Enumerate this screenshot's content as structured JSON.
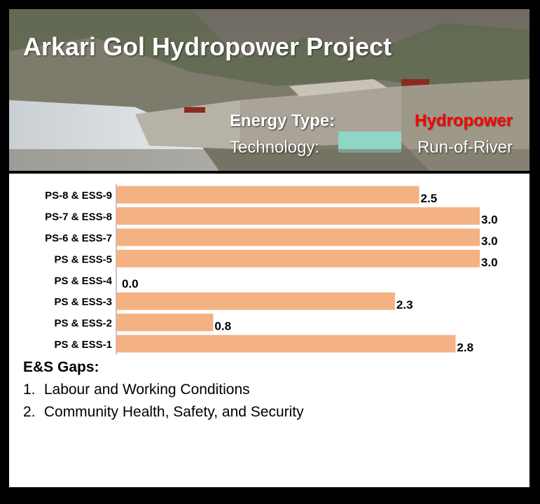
{
  "header": {
    "title": "Arkari Gol Hydropower Project",
    "energy_type_label": "Energy Type:",
    "energy_type_value": "Hydropower",
    "technology_label": "Technology:",
    "technology_value": "Run-of-River"
  },
  "colors": {
    "bar": "#f4b183",
    "energy_value": "#ff0000",
    "frame": "#000000"
  },
  "chart_data": {
    "type": "bar",
    "orientation": "horizontal",
    "categories": [
      "PS-8 & ESS-9",
      "PS-7 & ESS-8",
      "PS-6 & ESS-7",
      "PS & ESS-5",
      "PS & ESS-4",
      "PS & ESS-3",
      "PS & ESS-2",
      "PS & ESS-1"
    ],
    "values": [
      2.5,
      3.0,
      3.0,
      3.0,
      0.0,
      2.3,
      0.8,
      2.8
    ],
    "value_labels": [
      "2.5",
      "3.0",
      "3.0",
      "3.0",
      "0.0",
      "2.3",
      "0.8",
      "2.8"
    ],
    "xlim": [
      0,
      3
    ],
    "grid": false,
    "legend": "none"
  },
  "gaps": {
    "title": "E&S Gaps:",
    "items": [
      {
        "num": "1.",
        "text": "Labour and Working Conditions"
      },
      {
        "num": "2.",
        "text": "Community Health, Safety, and Security"
      }
    ]
  }
}
